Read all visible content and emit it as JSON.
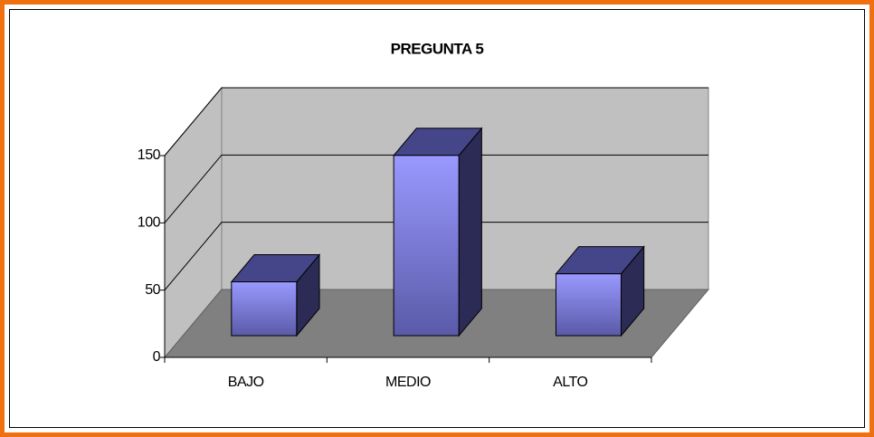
{
  "chart_data": {
    "type": "bar",
    "title": "PREGUNTA 5",
    "categories": [
      "BAJO",
      "MEDIO",
      "ALTO"
    ],
    "values": [
      40,
      134,
      46
    ],
    "color": "#9999ff",
    "ylim": [
      0,
      150
    ],
    "yticks": [
      0,
      50,
      100,
      150
    ],
    "grid": true
  }
}
